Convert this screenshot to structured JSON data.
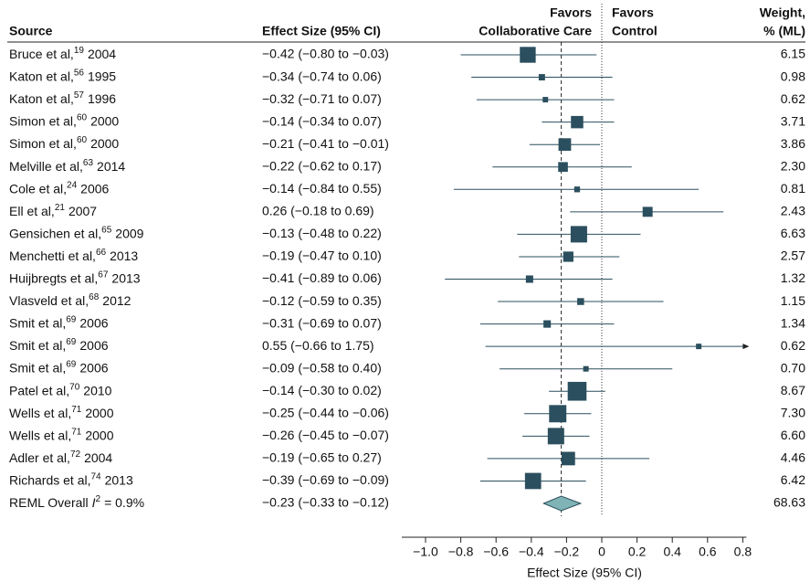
{
  "chart_data": {
    "type": "forest",
    "source_header": "Source",
    "effect_header": "Effect Size (95% CI)",
    "weight_header": [
      "Weight,",
      "% (ML)"
    ],
    "favors_left": [
      "Favors",
      "Collaborative Care"
    ],
    "favors_right": [
      "Favors",
      "Control"
    ],
    "xlabel": "Effect Size (95% CI)",
    "xlim": [
      -1.0,
      0.8
    ],
    "xticks": [
      {
        "value": -1.0,
        "label": "−1.0"
      },
      {
        "value": -0.8,
        "label": "−0.8"
      },
      {
        "value": -0.6,
        "label": "−0.6"
      },
      {
        "value": -0.4,
        "label": "−0.4"
      },
      {
        "value": -0.2,
        "label": "−0.2"
      },
      0,
      0.2,
      0.4,
      0.6,
      0.8
    ],
    "square_color": "#2b4f5e",
    "diamond_color": "#7fb3b5",
    "rows": [
      {
        "name": "Bruce et al,",
        "ref": "19",
        "year": "2004",
        "estimate": -0.42,
        "lower": -0.8,
        "upper": -0.03,
        "ci_label": "−0.42 (−0.80 to −0.03)",
        "weight": 6.15
      },
      {
        "name": "Katon et al,",
        "ref": "56",
        "year": "1995",
        "estimate": -0.34,
        "lower": -0.74,
        "upper": 0.06,
        "ci_label": "−0.34 (−0.74 to 0.06)",
        "weight": 0.98
      },
      {
        "name": "Katon et al,",
        "ref": "57",
        "year": "1996",
        "estimate": -0.32,
        "lower": -0.71,
        "upper": 0.07,
        "ci_label": "−0.32 (−0.71 to 0.07)",
        "weight": 0.62
      },
      {
        "name": "Simon  et al,",
        "ref": "60",
        "year": "2000",
        "estimate": -0.14,
        "lower": -0.34,
        "upper": 0.07,
        "ci_label": "−0.14 (−0.34 to 0.07)",
        "weight": 3.71
      },
      {
        "name": "Simon et al,",
        "ref": "60",
        "year": "2000",
        "estimate": -0.21,
        "lower": -0.41,
        "upper": -0.01,
        "ci_label": "−0.21 (−0.41 to −0.01)",
        "weight": 3.86
      },
      {
        "name": "Melville et al,",
        "ref": "63",
        "year": "2014",
        "estimate": -0.22,
        "lower": -0.62,
        "upper": 0.17,
        "ci_label": "−0.22 (−0.62 to 0.17)",
        "weight": 2.3,
        "weight_label": "2.30"
      },
      {
        "name": "Cole et al,",
        "ref": "24",
        "year": "2006",
        "estimate": -0.14,
        "lower": -0.84,
        "upper": 0.55,
        "ci_label": "−0.14 (−0.84 to 0.55)",
        "weight": 0.81
      },
      {
        "name": "Ell et al,",
        "ref": "21",
        "year": "2007",
        "estimate": 0.26,
        "lower": -0.18,
        "upper": 0.69,
        "ci_label": "0.26 (−0.18 to 0.69)",
        "weight": 2.43
      },
      {
        "name": "Gensichen et al,",
        "ref": "65",
        "year": "2009",
        "estimate": -0.13,
        "lower": -0.48,
        "upper": 0.22,
        "ci_label": "−0.13 (−0.48 to 0.22)",
        "weight": 6.63
      },
      {
        "name": "Menchetti et al,",
        "ref": "66",
        "year": "2013",
        "estimate": -0.19,
        "lower": -0.47,
        "upper": 0.1,
        "ci_label": "−0.19 (−0.47 to 0.10)",
        "weight": 2.57
      },
      {
        "name": "Huijbregts et al,",
        "ref": "67",
        "year": "2013",
        "estimate": -0.41,
        "lower": -0.89,
        "upper": 0.06,
        "ci_label": "−0.41 (−0.89 to 0.06)",
        "weight": 1.32
      },
      {
        "name": "Vlasveld et al,",
        "ref": "68",
        "year": "2012",
        "estimate": -0.12,
        "lower": -0.59,
        "upper": 0.35,
        "ci_label": "−0.12 (−0.59 to 0.35)",
        "weight": 1.15
      },
      {
        "name": "Smit et al,",
        "ref": "69",
        "year": "2006",
        "estimate": -0.31,
        "lower": -0.69,
        "upper": 0.07,
        "ci_label": "−0.31 (−0.69 to 0.07)",
        "weight": 1.34
      },
      {
        "name": "Smit et al,",
        "ref": "69",
        "year": "2006",
        "estimate": 0.55,
        "lower": -0.66,
        "upper": 1.75,
        "ci_label": "0.55 (−0.66 to 1.75)",
        "weight": 0.62
      },
      {
        "name": "Smit et al,",
        "ref": "69",
        "year": "2006",
        "estimate": -0.09,
        "lower": -0.58,
        "upper": 0.4,
        "ci_label": "−0.09 (−0.58 to 0.40)",
        "weight": 0.7,
        "weight_label": "0.70"
      },
      {
        "name": "Patel et al,",
        "ref": "70",
        "year": "2010",
        "estimate": -0.14,
        "lower": -0.3,
        "upper": 0.02,
        "ci_label": "−0.14 (−0.30 to 0.02)",
        "weight": 8.67
      },
      {
        "name": "Wells et al,",
        "ref": "71",
        "year": "2000",
        "estimate": -0.25,
        "lower": -0.44,
        "upper": -0.06,
        "ci_label": "−0.25 (−0.44 to −0.06)",
        "weight": 7.3,
        "weight_label": "7.30"
      },
      {
        "name": "Wells et al,",
        "ref": "71",
        "year": "2000",
        "estimate": -0.26,
        "lower": -0.45,
        "upper": -0.07,
        "ci_label": "−0.26 (−0.45 to −0.07)",
        "weight": 6.6,
        "weight_label": "6.60"
      },
      {
        "name": "Adler et al,",
        "ref": "72",
        "year": "2004",
        "estimate": -0.19,
        "lower": -0.65,
        "upper": 0.27,
        "ci_label": "−0.19 (−0.65 to 0.27)",
        "weight": 4.46
      },
      {
        "name": "Richards  et al,",
        "ref": "74",
        "year": "2013",
        "estimate": -0.39,
        "lower": -0.69,
        "upper": -0.09,
        "ci_label": "−0.39 (−0.69 to −0.09)",
        "weight": 6.42
      }
    ],
    "overall": {
      "name": "REML Overall",
      "stat": "I",
      "stat_sup": "2",
      "stat_text": "= 0.9%",
      "estimate": -0.23,
      "lower": -0.33,
      "upper": -0.12,
      "ci_label": "−0.23 (−0.33 to −0.12)",
      "weight": 68.63
    }
  }
}
